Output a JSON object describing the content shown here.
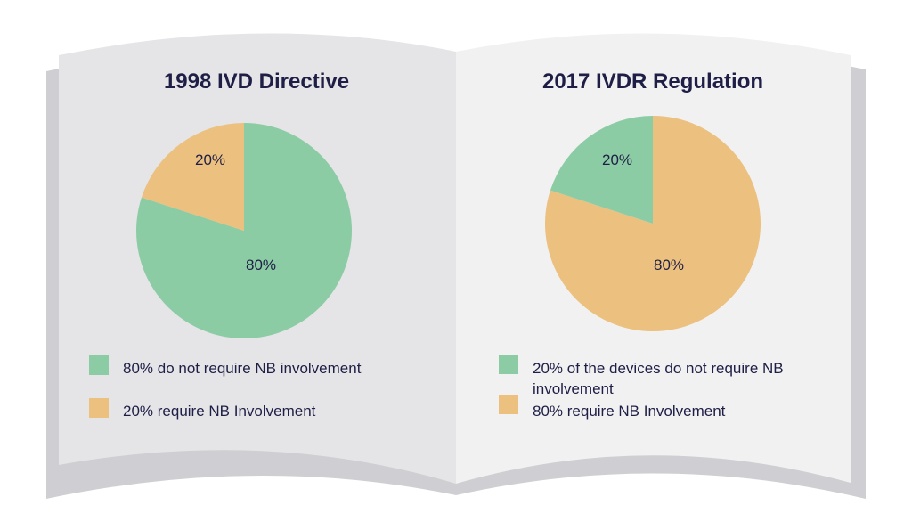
{
  "chart_data": [
    {
      "type": "pie",
      "title": "1998 IVD Directive",
      "slices": [
        {
          "label": "80% do not require NB involvement",
          "value": 80,
          "data_label": "80%",
          "color": "#8ccca4"
        },
        {
          "label": "20% require NB Involvement",
          "value": 20,
          "data_label": "20%",
          "color": "#ecc07e"
        }
      ],
      "legend": "bottom"
    },
    {
      "type": "pie",
      "title": "2017 IVDR Regulation",
      "slices": [
        {
          "label": "80% require NB Involvement",
          "value": 80,
          "data_label": "80%",
          "color": "#ecc07e"
        },
        {
          "label": "20% of the devices do not require NB involvement",
          "value": 20,
          "data_label": "20%",
          "color": "#8ccca4"
        }
      ],
      "legend": "bottom"
    }
  ]
}
